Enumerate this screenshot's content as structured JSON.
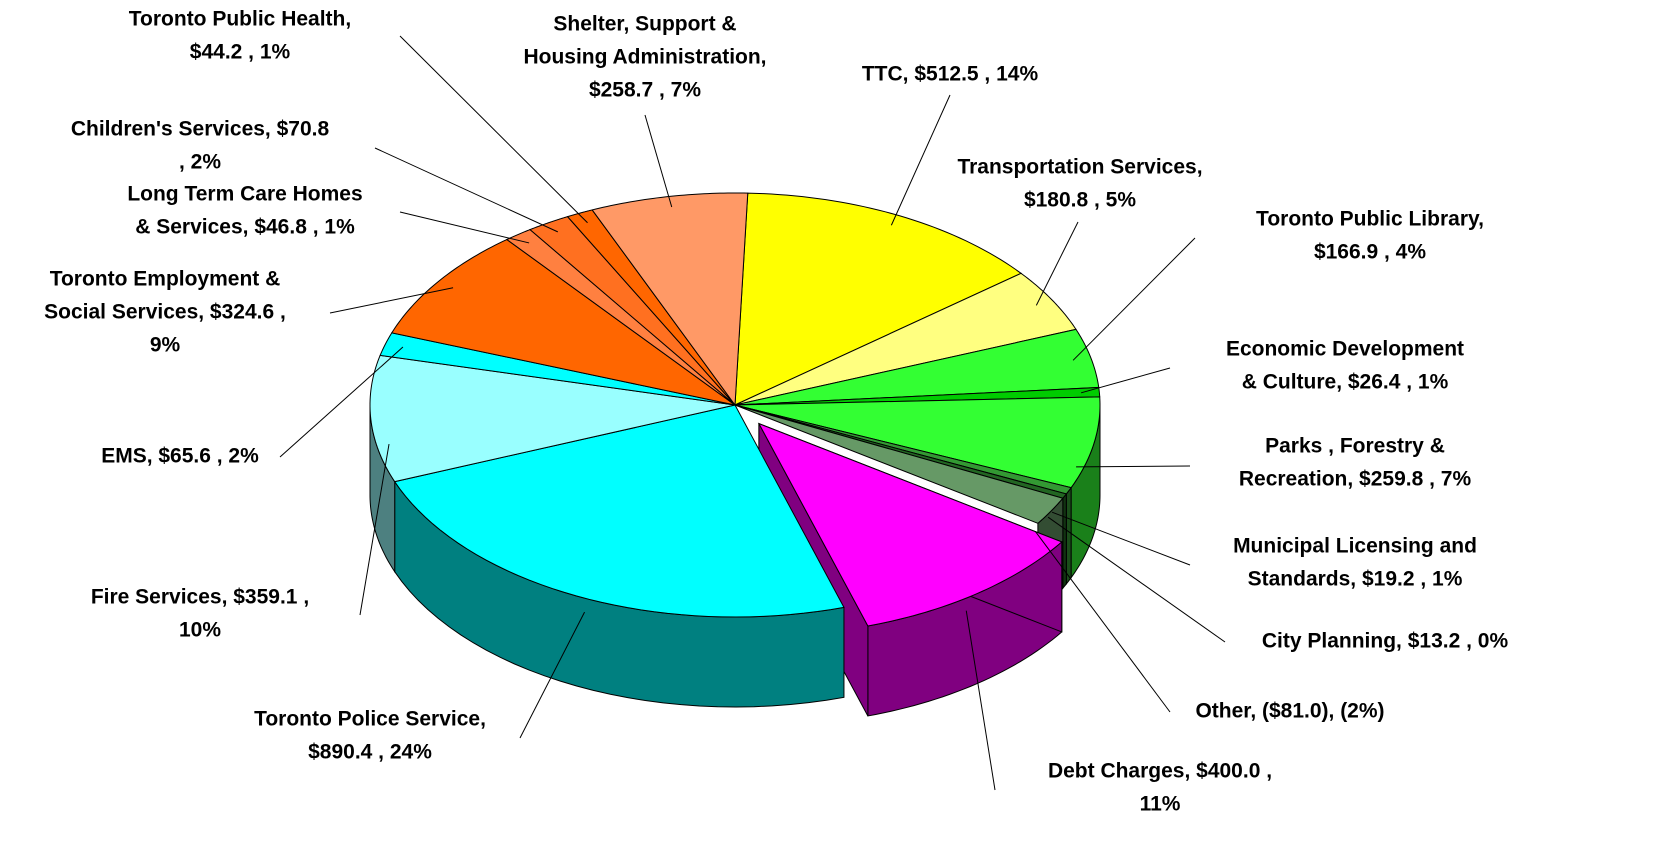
{
  "chart_data": {
    "type": "pie3d",
    "categories": [
      "TTC",
      "Transportation Services",
      "Toronto Public Library",
      "Economic Development & Culture",
      "Parks , Forestry & Recreation",
      "Municipal Licensing and Standards",
      "City Planning",
      "Other",
      "Debt Charges",
      "Toronto Police Service",
      "Fire Services",
      "EMS",
      "Toronto Employment & Social Services",
      "Long Term Care Homes & Services",
      "Children's Services",
      "Toronto Public Health",
      "Shelter, Support & Housing Administration"
    ],
    "values": [
      512.5,
      180.8,
      166.9,
      26.4,
      259.8,
      19.2,
      13.2,
      -81.0,
      400.0,
      890.4,
      359.1,
      65.6,
      324.6,
      46.8,
      70.8,
      44.2,
      258.7
    ],
    "labels": [
      [
        "TTC, $512.5 , 14%"
      ],
      [
        "Transportation Services,",
        "$180.8 , 5%"
      ],
      [
        "Toronto Public Library,",
        "$166.9 , 4%"
      ],
      [
        "Economic Development",
        "& Culture, $26.4 , 1%"
      ],
      [
        "Parks , Forestry &",
        "Recreation, $259.8 , 7%"
      ],
      [
        "Municipal Licensing and",
        "Standards, $19.2 , 1%"
      ],
      [
        "City Planning, $13.2 , 0%"
      ],
      [
        "Other, ($81.0), (2%)"
      ],
      [
        "Debt Charges, $400.0 ,",
        "11%"
      ],
      [
        "Toronto Police Service,",
        "$890.4 , 24%"
      ],
      [
        "Fire Services, $359.1 ,",
        "10%"
      ],
      [
        "EMS, $65.6 , 2%"
      ],
      [
        "Toronto Employment &",
        "Social Services, $324.6 ,",
        "9%"
      ],
      [
        "Long Term Care Homes",
        "& Services, $46.8 , 1%"
      ],
      [
        "Children's Services, $70.8",
        ", 2%"
      ],
      [
        "Toronto Public Health,",
        "$44.2 , 1%"
      ],
      [
        "Shelter, Support &",
        "Housing Administration,",
        "$258.7 , 7%"
      ]
    ],
    "colors": [
      "#ffff00",
      "#ffff80",
      "#33ff33",
      "#00cc00",
      "#33ff33",
      "#339933",
      "#226622",
      "#669966",
      "#ff00ff",
      "#00ffff",
      "#99ffff",
      "#00ffff",
      "#ff6600",
      "#ff8040",
      "#ff7020",
      "#ff6600",
      "#ff9966"
    ],
    "exploded": [
      false,
      false,
      false,
      false,
      false,
      false,
      false,
      false,
      true,
      false,
      false,
      false,
      false,
      false,
      false,
      false,
      false
    ]
  }
}
